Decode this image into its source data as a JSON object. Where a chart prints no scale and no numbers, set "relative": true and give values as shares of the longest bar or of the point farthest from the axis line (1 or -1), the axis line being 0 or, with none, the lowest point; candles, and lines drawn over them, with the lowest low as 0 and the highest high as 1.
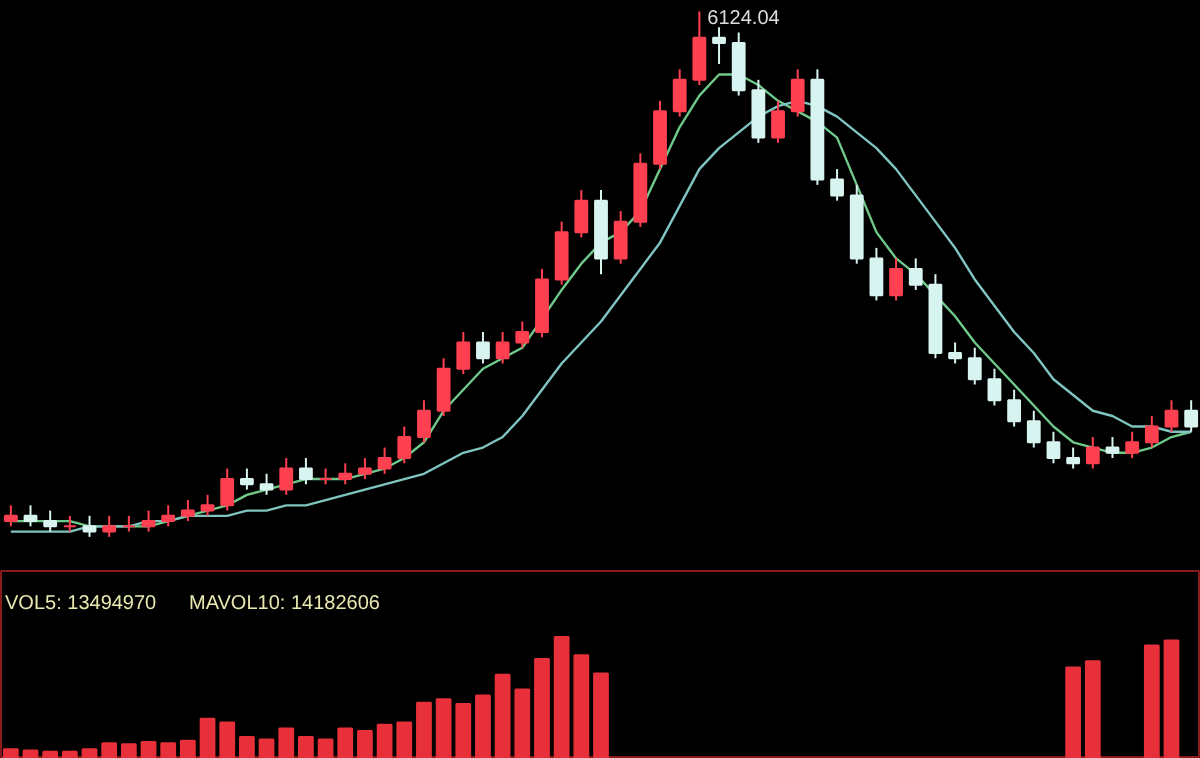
{
  "chart_data": [
    {
      "type": "candlestick",
      "relative": true,
      "annotations": [
        "6124.04"
      ],
      "categories": [
        null,
        null,
        null,
        null,
        null,
        null,
        null,
        null,
        null,
        null,
        null,
        null,
        null,
        null,
        null,
        null,
        null,
        null,
        null,
        null,
        null,
        null,
        null,
        null,
        null,
        null,
        null,
        null,
        null,
        null,
        null,
        null,
        null,
        null,
        null,
        null,
        null,
        null,
        null,
        null,
        null,
        null,
        null,
        null,
        null,
        null,
        null,
        null,
        null,
        null,
        null,
        null,
        null,
        null,
        null,
        null,
        null,
        null,
        null,
        null,
        null
      ],
      "ohlc": [
        [
          0.03,
          0.06,
          0.02,
          0.04
        ],
        [
          0.04,
          0.06,
          0.02,
          0.03
        ],
        [
          0.03,
          0.05,
          0.01,
          0.02
        ],
        [
          0.02,
          0.04,
          0.01,
          0.02
        ],
        [
          0.02,
          0.04,
          0.0,
          0.01
        ],
        [
          0.01,
          0.04,
          0.0,
          0.02
        ],
        [
          0.02,
          0.04,
          0.01,
          0.02
        ],
        [
          0.02,
          0.05,
          0.01,
          0.03
        ],
        [
          0.03,
          0.06,
          0.02,
          0.04
        ],
        [
          0.04,
          0.07,
          0.03,
          0.05
        ],
        [
          0.05,
          0.08,
          0.04,
          0.06
        ],
        [
          0.06,
          0.13,
          0.05,
          0.11
        ],
        [
          0.11,
          0.13,
          0.09,
          0.1
        ],
        [
          0.1,
          0.12,
          0.08,
          0.09
        ],
        [
          0.09,
          0.15,
          0.08,
          0.13
        ],
        [
          0.13,
          0.15,
          0.1,
          0.11
        ],
        [
          0.11,
          0.13,
          0.1,
          0.11
        ],
        [
          0.11,
          0.14,
          0.1,
          0.12
        ],
        [
          0.12,
          0.15,
          0.11,
          0.13
        ],
        [
          0.13,
          0.17,
          0.12,
          0.15
        ],
        [
          0.15,
          0.21,
          0.14,
          0.19
        ],
        [
          0.19,
          0.26,
          0.18,
          0.24
        ],
        [
          0.24,
          0.34,
          0.23,
          0.32
        ],
        [
          0.32,
          0.39,
          0.31,
          0.37
        ],
        [
          0.37,
          0.39,
          0.33,
          0.34
        ],
        [
          0.34,
          0.39,
          0.33,
          0.37
        ],
        [
          0.37,
          0.41,
          0.36,
          0.39
        ],
        [
          0.39,
          0.51,
          0.38,
          0.49
        ],
        [
          0.49,
          0.6,
          0.48,
          0.58
        ],
        [
          0.58,
          0.66,
          0.57,
          0.64
        ],
        [
          0.64,
          0.66,
          0.5,
          0.53
        ],
        [
          0.53,
          0.62,
          0.52,
          0.6
        ],
        [
          0.6,
          0.73,
          0.59,
          0.71
        ],
        [
          0.71,
          0.83,
          0.7,
          0.81
        ],
        [
          0.81,
          0.89,
          0.8,
          0.87
        ],
        [
          0.87,
          1.0,
          0.86,
          0.95
        ],
        [
          0.95,
          0.97,
          0.9,
          0.94
        ],
        [
          0.94,
          0.96,
          0.84,
          0.85
        ],
        [
          0.85,
          0.87,
          0.75,
          0.76
        ],
        [
          0.76,
          0.83,
          0.75,
          0.81
        ],
        [
          0.81,
          0.89,
          0.8,
          0.87
        ],
        [
          0.87,
          0.89,
          0.67,
          0.68
        ],
        [
          0.68,
          0.7,
          0.64,
          0.65
        ],
        [
          0.65,
          0.67,
          0.52,
          0.53
        ],
        [
          0.53,
          0.55,
          0.45,
          0.46
        ],
        [
          0.46,
          0.53,
          0.45,
          0.51
        ],
        [
          0.51,
          0.53,
          0.47,
          0.48
        ],
        [
          0.48,
          0.5,
          0.34,
          0.35
        ],
        [
          0.35,
          0.37,
          0.33,
          0.34
        ],
        [
          0.34,
          0.36,
          0.29,
          0.3
        ],
        [
          0.3,
          0.32,
          0.25,
          0.26
        ],
        [
          0.26,
          0.28,
          0.21,
          0.22
        ],
        [
          0.22,
          0.24,
          0.17,
          0.18
        ],
        [
          0.18,
          0.2,
          0.14,
          0.15
        ],
        [
          0.15,
          0.17,
          0.13,
          0.14
        ],
        [
          0.14,
          0.19,
          0.13,
          0.17
        ],
        [
          0.17,
          0.19,
          0.15,
          0.16
        ],
        [
          0.16,
          0.2,
          0.15,
          0.18
        ],
        [
          0.18,
          0.23,
          0.17,
          0.21
        ],
        [
          0.21,
          0.26,
          0.2,
          0.24
        ],
        [
          0.24,
          0.26,
          0.2,
          0.21
        ]
      ],
      "series": [
        {
          "type": "line",
          "color": "#6fc98a",
          "values": [
            0.03,
            0.03,
            0.03,
            0.03,
            0.02,
            0.02,
            0.02,
            0.02,
            0.03,
            0.04,
            0.05,
            0.06,
            0.08,
            0.09,
            0.1,
            0.11,
            0.11,
            0.11,
            0.12,
            0.13,
            0.15,
            0.18,
            0.24,
            0.28,
            0.32,
            0.34,
            0.36,
            null,
            0.47,
            0.52,
            0.56,
            0.58,
            0.62,
            0.7,
            0.78,
            0.84,
            0.88,
            0.88,
            0.86,
            0.83,
            0.81,
            0.79,
            0.76,
            0.67,
            0.58,
            0.53,
            0.5,
            0.46,
            0.42,
            0.37,
            0.33,
            0.29,
            0.25,
            0.21,
            0.18,
            0.17,
            0.16,
            0.16,
            0.17,
            0.19,
            0.2
          ]
        },
        {
          "type": "line",
          "color": "#7fc4c0",
          "values": [
            0.01,
            0.01,
            0.01,
            0.01,
            0.02,
            0.02,
            0.02,
            0.03,
            0.03,
            0.04,
            0.04,
            0.04,
            0.05,
            0.05,
            0.06,
            0.06,
            0.07,
            0.08,
            0.09,
            0.1,
            0.11,
            0.12,
            0.14,
            0.16,
            0.17,
            0.19,
            0.23,
            0.28,
            0.33,
            0.37,
            0.41,
            0.46,
            0.51,
            0.56,
            0.63,
            0.7,
            0.74,
            0.77,
            0.8,
            0.82,
            0.83,
            0.82,
            0.8,
            0.77,
            0.74,
            0.7,
            0.65,
            0.6,
            0.55,
            0.49,
            0.44,
            0.39,
            0.35,
            0.3,
            0.27,
            0.24,
            0.23,
            0.21,
            0.21,
            0.2,
            0.2
          ]
        }
      ]
    },
    {
      "type": "bar",
      "relative": true,
      "color": "#e8303a",
      "annotations": [
        "VOL5: 13494970",
        "MAVOL10: 14182606"
      ],
      "categories": [
        null,
        null,
        null,
        null,
        null,
        null,
        null,
        null,
        null,
        null,
        null,
        null,
        null,
        null,
        null,
        null,
        null,
        null,
        null,
        null,
        null,
        null,
        null,
        null,
        null,
        null,
        null,
        null,
        null,
        null,
        null,
        null,
        null,
        null,
        null,
        null,
        null,
        null,
        null,
        null,
        null,
        null,
        null,
        null,
        null,
        null,
        null,
        null,
        null,
        null,
        null,
        null,
        null,
        null,
        null,
        null,
        null,
        null,
        null,
        null,
        null
      ],
      "values": [
        0.08,
        0.07,
        0.06,
        0.06,
        0.08,
        0.13,
        0.12,
        0.14,
        0.13,
        0.15,
        0.33,
        0.3,
        0.18,
        0.16,
        0.25,
        0.18,
        0.16,
        0.25,
        0.23,
        0.28,
        0.3,
        0.46,
        0.49,
        0.45,
        0.52,
        0.69,
        0.57,
        0.82,
        1.0,
        0.85,
        0.7,
        null,
        null,
        null,
        null,
        null,
        null,
        null,
        null,
        null,
        null,
        null,
        null,
        null,
        null,
        null,
        null,
        null,
        null,
        null,
        null,
        null,
        null,
        null,
        0.75,
        0.8,
        null,
        null,
        0.93,
        0.97,
        null
      ]
    }
  ]
}
